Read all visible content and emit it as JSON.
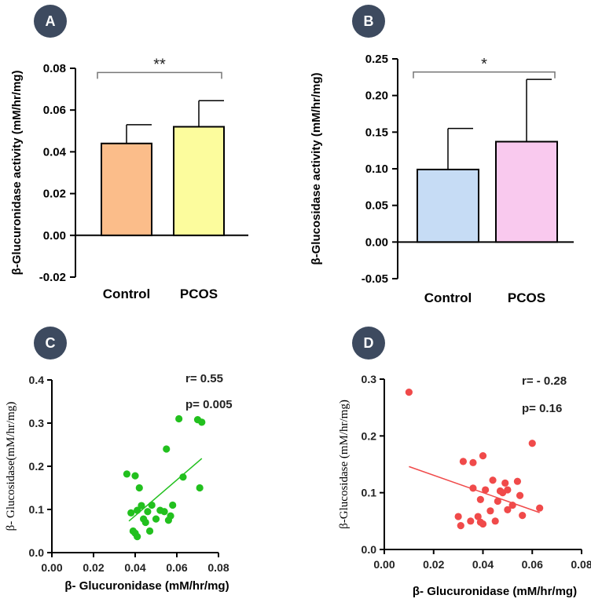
{
  "panels": [
    {
      "id": "A",
      "badge": "A",
      "chart_data": {
        "type": "bar",
        "categories": [
          "Control",
          "PCOS"
        ],
        "values": [
          0.044,
          0.052
        ],
        "errors": [
          0.009,
          0.0125
        ],
        "colors": [
          "#fbbd8a",
          "#fcfc9d"
        ],
        "ylabel": "β-Glucuronidase activity (mM/hr/mg)",
        "xlabel": "",
        "ylim": [
          -0.02,
          0.08
        ],
        "yticks": [
          -0.02,
          0.0,
          0.02,
          0.04,
          0.06,
          0.08
        ],
        "ytick_labels": [
          "-0.02",
          "0.00",
          "0.02",
          "0.04",
          "0.06",
          "0.08"
        ],
        "significance": "**",
        "bracket_value": 0.078
      }
    },
    {
      "id": "B",
      "badge": "B",
      "chart_data": {
        "type": "bar",
        "categories": [
          "Control",
          "PCOS"
        ],
        "values": [
          0.099,
          0.137
        ],
        "errors": [
          0.056,
          0.085
        ],
        "colors": [
          "#c6dcf5",
          "#f9c9ee"
        ],
        "ylabel": "β-Glucosidase activity (mM/hr/mg)",
        "xlabel": "",
        "ylim": [
          -0.05,
          0.25
        ],
        "yticks": [
          -0.05,
          0.0,
          0.05,
          0.1,
          0.15,
          0.2,
          0.25
        ],
        "ytick_labels": [
          "-0.05",
          "0.00",
          "0.05",
          "0.10",
          "0.15",
          "0.20",
          "0.25"
        ],
        "significance": "*",
        "bracket_value": 0.232
      }
    },
    {
      "id": "C",
      "badge": "C",
      "chart_data": {
        "type": "scatter",
        "color": "#22c01e",
        "xlabel": "β- Glucuronidase (mM/hr/mg)",
        "ylabel": "β- Glucosidase(mM/hr/mg)",
        "xlim": [
          0,
          0.08
        ],
        "ylim": [
          0,
          0.4
        ],
        "xticks": [
          0,
          0.02,
          0.04,
          0.06,
          0.08
        ],
        "xtick_labels": [
          "0.00",
          "0.02",
          "0.04",
          "0.06",
          "0.08"
        ],
        "yticks": [
          0,
          0.1,
          0.2,
          0.3,
          0.4
        ],
        "ytick_labels": [
          "0.0",
          "0.1",
          "0.2",
          "0.3",
          "0.4"
        ],
        "r_text": "r= 0.55",
        "p_text": "p= 0.005",
        "fit_line": {
          "x": [
            0.037,
            0.072
          ],
          "y": [
            0.073,
            0.218
          ]
        },
        "x": [
          0.036,
          0.038,
          0.039,
          0.04,
          0.04,
          0.041,
          0.041,
          0.042,
          0.043,
          0.044,
          0.045,
          0.046,
          0.047,
          0.048,
          0.05,
          0.052,
          0.054,
          0.055,
          0.056,
          0.057,
          0.058,
          0.061,
          0.063,
          0.07,
          0.071,
          0.072
        ],
        "y": [
          0.182,
          0.092,
          0.05,
          0.178,
          0.045,
          0.098,
          0.037,
          0.15,
          0.109,
          0.078,
          0.07,
          0.095,
          0.05,
          0.11,
          0.078,
          0.098,
          0.095,
          0.24,
          0.075,
          0.085,
          0.11,
          0.31,
          0.175,
          0.308,
          0.15,
          0.302
        ]
      }
    },
    {
      "id": "D",
      "badge": "D",
      "chart_data": {
        "type": "scatter",
        "color": "#f04a4a",
        "xlabel": "β- Glucuronidase (mM/hr/mg)",
        "ylabel": "β-Glucosidase (mM/hr/mg)",
        "xlim": [
          0,
          0.08
        ],
        "ylim": [
          0,
          0.3
        ],
        "xticks": [
          0,
          0.02,
          0.04,
          0.06,
          0.08
        ],
        "xtick_labels": [
          "0.00",
          "0.02",
          "0.04",
          "0.06",
          "0.08"
        ],
        "yticks": [
          0,
          0.1,
          0.2,
          0.3
        ],
        "ytick_labels": [
          "0.0",
          "0.1",
          "0.2",
          "0.3"
        ],
        "r_text": "r= - 0.28",
        "p_text": "p= 0.16",
        "fit_line": {
          "x": [
            0.01,
            0.063
          ],
          "y": [
            0.146,
            0.065
          ]
        },
        "x": [
          0.01,
          0.03,
          0.031,
          0.032,
          0.035,
          0.036,
          0.036,
          0.038,
          0.039,
          0.039,
          0.04,
          0.04,
          0.041,
          0.043,
          0.044,
          0.045,
          0.046,
          0.047,
          0.048,
          0.049,
          0.05,
          0.05,
          0.052,
          0.054,
          0.055,
          0.056,
          0.06,
          0.063
        ],
        "y": [
          0.277,
          0.058,
          0.042,
          0.155,
          0.05,
          0.153,
          0.108,
          0.058,
          0.088,
          0.048,
          0.165,
          0.045,
          0.105,
          0.068,
          0.122,
          0.05,
          0.085,
          0.103,
          0.1,
          0.117,
          0.105,
          0.07,
          0.078,
          0.12,
          0.095,
          0.06,
          0.187,
          0.073
        ]
      }
    }
  ]
}
